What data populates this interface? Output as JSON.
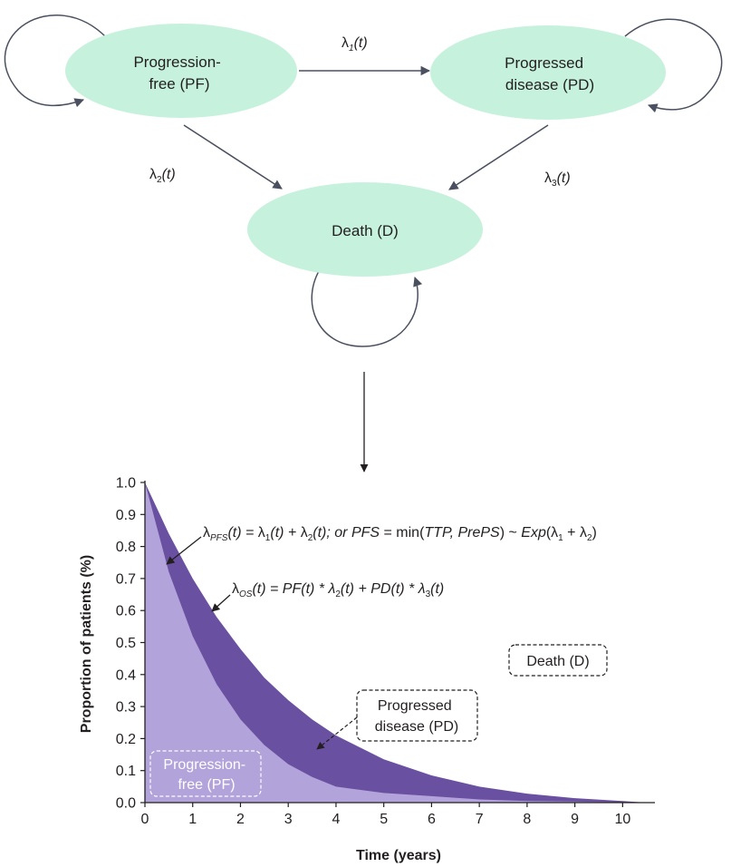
{
  "diagram": {
    "states": {
      "pf": {
        "line1": "Progression-",
        "line2": "free (PF)"
      },
      "pd": {
        "line1": "Progressed",
        "line2": "disease (PD)"
      },
      "death": {
        "line1": "Death (D)"
      }
    },
    "transitions": [
      {
        "id": "lambda1",
        "symbol": "λ",
        "index": "1",
        "arg": "(t)"
      },
      {
        "id": "lambda2",
        "symbol": "λ",
        "index": "2",
        "arg": "(t)"
      },
      {
        "id": "lambda3",
        "symbol": "λ",
        "index": "3",
        "arg": "(t)"
      }
    ],
    "colors": {
      "node_fill": "#c6f2dd",
      "arrow": "#4a5060"
    }
  },
  "chart_data": {
    "type": "area",
    "ylabel": "Proportion of patients (%)",
    "xlabel": "Time (years)",
    "xlim": [
      0,
      10.6
    ],
    "ylim": [
      0,
      1.0
    ],
    "x_ticks": [
      "0",
      "1",
      "2",
      "3",
      "4",
      "5",
      "6",
      "7",
      "8",
      "9",
      "10"
    ],
    "y_ticks": [
      "0.0",
      "0.1",
      "0.2",
      "0.3",
      "0.4",
      "0.5",
      "0.6",
      "0.7",
      "0.8",
      "0.9",
      "1.0"
    ],
    "series": [
      {
        "name": "Progression-free (PF)",
        "color": "#b3a3db",
        "x": [
          0,
          0.5,
          1,
          1.5,
          2,
          2.5,
          3,
          3.5,
          4,
          5,
          6,
          7,
          8,
          9,
          10,
          10.5
        ],
        "y": [
          1.0,
          0.72,
          0.52,
          0.37,
          0.26,
          0.18,
          0.12,
          0.08,
          0.05,
          0.03,
          0.02,
          0.01,
          0.005,
          0.003,
          0.001,
          0.0
        ]
      },
      {
        "name": "Progressed disease (PD)",
        "color": "#6a50a0",
        "x": [
          0,
          0.5,
          1,
          1.5,
          2,
          2.5,
          3,
          3.5,
          4,
          5,
          6,
          7,
          8,
          9,
          10,
          10.5
        ],
        "y": [
          1.0,
          0.84,
          0.7,
          0.58,
          0.48,
          0.39,
          0.32,
          0.26,
          0.21,
          0.135,
          0.085,
          0.05,
          0.028,
          0.014,
          0.005,
          0.0
        ]
      }
    ],
    "annotations": {
      "pfs": {
        "lambda": "λ",
        "sub": "PFS",
        "lhs_arg": "(t) = ",
        "l1": "λ",
        "l1_sub": "1",
        "t1": "(t) + ",
        "l2": "λ",
        "l2_sub": "2",
        "t2": "(t); or ",
        "pfs": "PFS",
        "eq": " = min(",
        "ttp": "TTP, PrePS",
        "close": ") ~ ",
        "exp": "Exp",
        "paren": "(λ",
        "e1_sub": "1",
        "plus": " + λ",
        "e2_sub": "2",
        "end": ")"
      },
      "os": {
        "lambda": "λ",
        "sub": "OS",
        "lhs_arg": "(t) = ",
        "pf": "PF",
        "pf_arg": "(t) * λ",
        "s2": "2",
        "t2": "(t) + ",
        "pd": "PD",
        "pd_arg": "(t) * λ",
        "s3": "3",
        "t3": "(t)"
      },
      "death_box": "Death (D)",
      "pd_box": {
        "line1": "Progressed",
        "line2": "disease (PD)"
      },
      "pf_box": {
        "line1": "Progression-",
        "line2": "free (PF)"
      }
    }
  }
}
